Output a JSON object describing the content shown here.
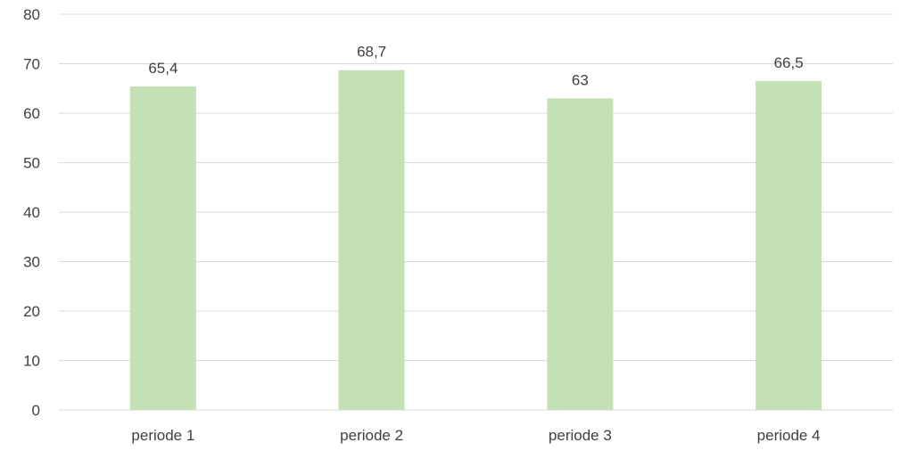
{
  "chart_data": {
    "type": "bar",
    "title": "",
    "xlabel": "",
    "ylabel": "",
    "categories": [
      "periode 1",
      "periode 2",
      "periode 3",
      "periode 4"
    ],
    "values": [
      65.4,
      68.7,
      63,
      66.5
    ],
    "data_labels": [
      "65,4",
      "68,7",
      "63",
      "66,5"
    ],
    "y_ticks": [
      0,
      10,
      20,
      30,
      40,
      50,
      60,
      70,
      80
    ],
    "ylim": [
      0,
      80
    ],
    "grid": true,
    "legend": "none",
    "bar_color": "#c5e0b4"
  }
}
